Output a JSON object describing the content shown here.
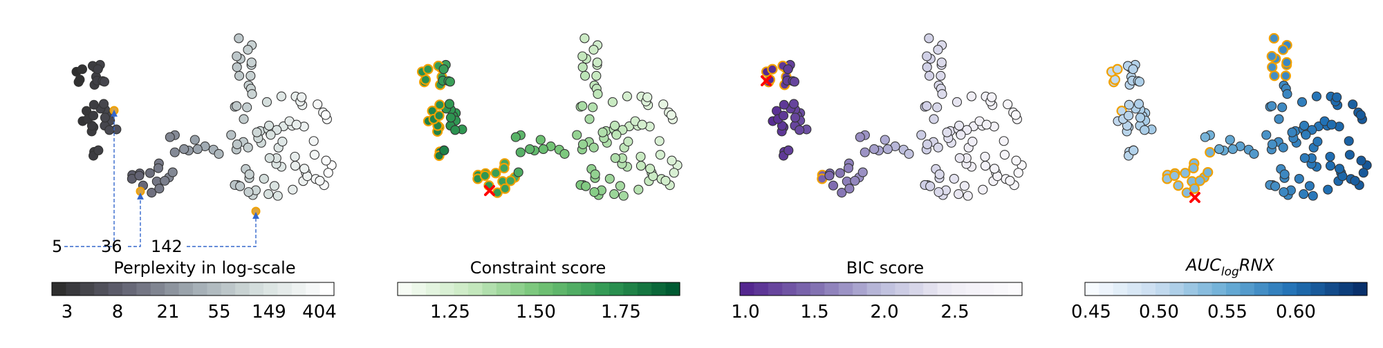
{
  "chart_data": [
    {
      "type": "scatter",
      "title": "Perplexity in log-scale",
      "colormap": "gray",
      "colorbar": {
        "ticks": [
          "3",
          "8",
          "21",
          "55",
          "149",
          "404"
        ],
        "scale": "log"
      },
      "annotations": [
        {
          "label": "5"
        },
        {
          "label": "36"
        },
        {
          "label": "142"
        }
      ]
    },
    {
      "type": "scatter",
      "title": "Constraint score",
      "colormap": "green",
      "colorbar": {
        "ticks": [
          "1.25",
          "1.50",
          "1.75"
        ]
      },
      "marker": "best"
    },
    {
      "type": "scatter",
      "title": "BIC score",
      "colormap": "purple",
      "colorbar": {
        "ticks": [
          "1.0",
          "1.5",
          "2.0",
          "2.5"
        ]
      },
      "marker": "best"
    },
    {
      "type": "scatter",
      "title_main": "AUC",
      "title_sub": "log",
      "title_tail": "RNX",
      "colormap": "blue",
      "colorbar": {
        "ticks": [
          "0.45",
          "0.50",
          "0.55",
          "0.60"
        ]
      },
      "marker": "best"
    }
  ],
  "colors": {
    "highlight_edge": "#f0a000",
    "best_marker": "#ff0000",
    "link_line": "#3366cc"
  }
}
